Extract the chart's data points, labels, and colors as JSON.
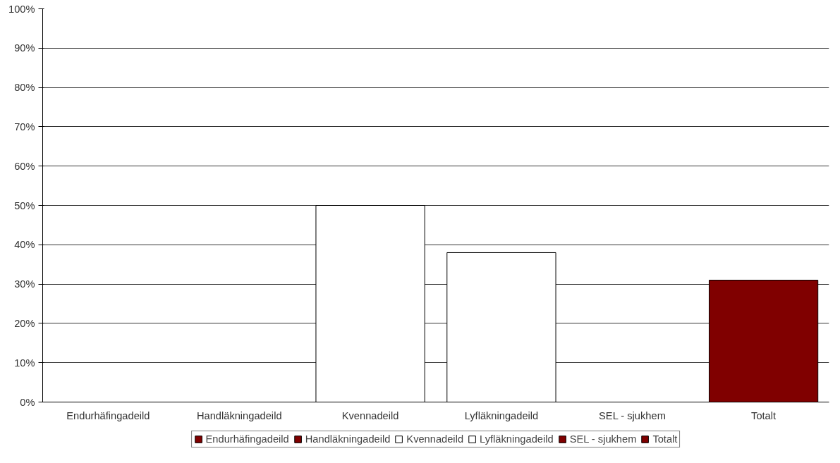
{
  "chart_data": {
    "type": "bar",
    "categories": [
      "Endurhäfingadeild",
      "Handläkningadeild",
      "Kvennadeild",
      "Lyfläkningadeild",
      "SEL - sjukhem",
      "Totalt"
    ],
    "series": [
      {
        "name": "Endurhäfingadeild",
        "color": "#800000",
        "values": [
          null,
          null,
          null,
          null,
          null,
          null
        ]
      },
      {
        "name": "Handläkningadeild",
        "color": "#800000",
        "values": [
          null,
          null,
          null,
          null,
          null,
          null
        ]
      },
      {
        "name": "Kvennadeild",
        "color": "#ffffff",
        "values": [
          null,
          null,
          50,
          null,
          null,
          null
        ]
      },
      {
        "name": "Lyfläkningadeild",
        "color": "#ffffff",
        "values": [
          null,
          null,
          null,
          38,
          null,
          null
        ]
      },
      {
        "name": "SEL - sjukhem",
        "color": "#800000",
        "values": [
          null,
          null,
          null,
          null,
          null,
          null
        ]
      },
      {
        "name": "Totalt",
        "color": "#800000",
        "values": [
          null,
          null,
          null,
          null,
          null,
          31
        ]
      }
    ],
    "ylim": [
      0,
      100
    ],
    "yticks": [
      {
        "value": 0,
        "label": "0%"
      },
      {
        "value": 10,
        "label": "10%"
      },
      {
        "value": 20,
        "label": "20%"
      },
      {
        "value": 30,
        "label": "30%"
      },
      {
        "value": 40,
        "label": "40%"
      },
      {
        "value": 50,
        "label": "50%"
      },
      {
        "value": 60,
        "label": "60%"
      },
      {
        "value": 70,
        "label": "70%"
      },
      {
        "value": 80,
        "label": "80%"
      },
      {
        "value": 90,
        "label": "90%"
      },
      {
        "value": 100,
        "label": "100%"
      }
    ],
    "grid": "y",
    "legend": "bottom"
  }
}
